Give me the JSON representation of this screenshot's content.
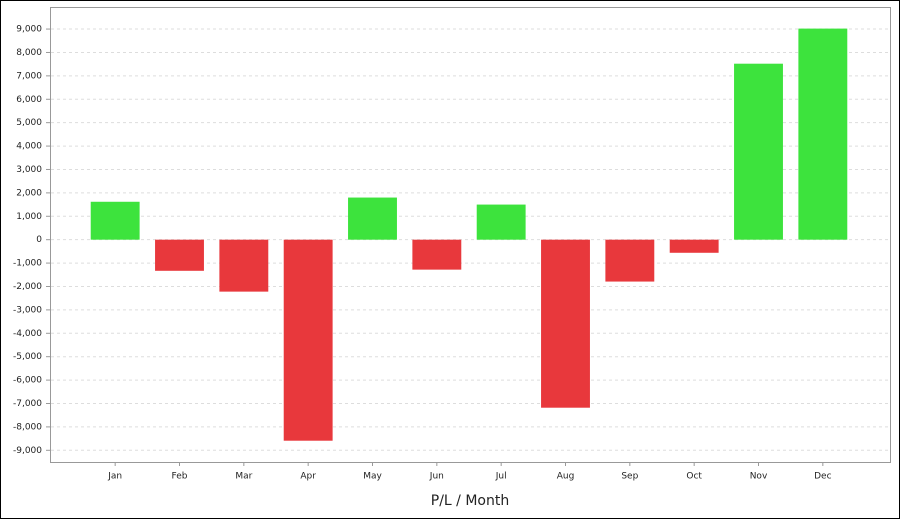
{
  "chart_data": {
    "type": "bar",
    "x_label": "P/L / Month",
    "categories": [
      "Jan",
      "Feb",
      "Mar",
      "Apr",
      "May",
      "Jun",
      "Jul",
      "Aug",
      "Sep",
      "Oct",
      "Nov",
      "Dec"
    ],
    "values": [
      1620,
      -1330,
      -2220,
      -8590,
      1800,
      -1280,
      1500,
      -7180,
      -1790,
      -560,
      7520,
      9020
    ],
    "positive_color": "#3de33d",
    "negative_color": "#e8383c",
    "ylim": [
      -9500,
      9900
    ],
    "yticks": [
      {
        "value": -9000,
        "label": "-9,000"
      },
      {
        "value": -8000,
        "label": "-8,000"
      },
      {
        "value": -7000,
        "label": "-7,000"
      },
      {
        "value": -6000,
        "label": "-6,000"
      },
      {
        "value": -5000,
        "label": "-5,000"
      },
      {
        "value": -4000,
        "label": "-4,000"
      },
      {
        "value": -3000,
        "label": "-3,000"
      },
      {
        "value": -2000,
        "label": "-2,000"
      },
      {
        "value": -1000,
        "label": "-1,000"
      },
      0,
      {
        "value": 1000,
        "label": "1,000"
      },
      {
        "value": 2000,
        "label": "2,000"
      },
      {
        "value": 3000,
        "label": "3,000"
      },
      {
        "value": 4000,
        "label": "4,000"
      },
      {
        "value": 5000,
        "label": "5,000"
      },
      {
        "value": 6000,
        "label": "6,000"
      },
      {
        "value": 7000,
        "label": "7,000"
      },
      {
        "value": 8000,
        "label": "8,000"
      },
      {
        "value": 9000,
        "label": "9,000"
      }
    ],
    "grid": true
  }
}
